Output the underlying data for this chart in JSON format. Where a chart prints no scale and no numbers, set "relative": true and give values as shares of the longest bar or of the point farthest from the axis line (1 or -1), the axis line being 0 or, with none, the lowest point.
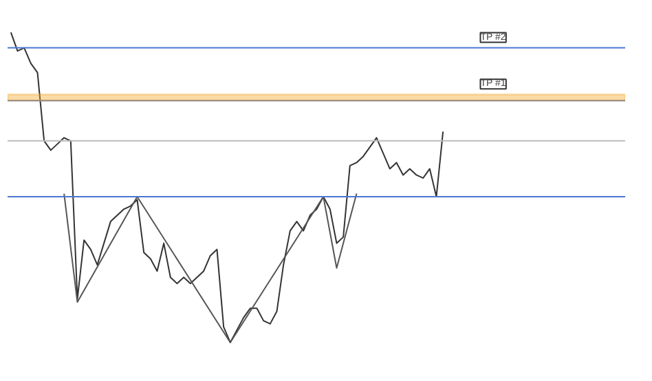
{
  "chart_data": {
    "type": "line",
    "relative": true,
    "categories": [
      null,
      null,
      null,
      null,
      null,
      null,
      null,
      null,
      null,
      null,
      null,
      null,
      null,
      null,
      null,
      null,
      null,
      null,
      null,
      null,
      null,
      null,
      null,
      null,
      null,
      null,
      null,
      null,
      null,
      null,
      null,
      null,
      null,
      null,
      null,
      null,
      null,
      null,
      null,
      null,
      null,
      null,
      null,
      null,
      null,
      null,
      null,
      null,
      null,
      null,
      null,
      null,
      null,
      null,
      null,
      null,
      null,
      null,
      null,
      null,
      null,
      null,
      null,
      null,
      null,
      null
    ],
    "series": [
      {
        "color": "#333333",
        "values": [
          1.0,
          0.94,
          0.95,
          0.9,
          0.87,
          0.65,
          0.62,
          0.64,
          0.66,
          0.65,
          0.14,
          0.33,
          0.3,
          0.25,
          0.32,
          0.39,
          0.41,
          0.43,
          0.44,
          0.46,
          0.29,
          0.27,
          0.23,
          0.32,
          0.21,
          0.19,
          0.21,
          0.19,
          0.21,
          0.23,
          0.28,
          0.3,
          0.05,
          0,
          0.04,
          0.08,
          0.11,
          0.11,
          0.07,
          0.06,
          0.1,
          0.25,
          0.36,
          0.39,
          0.36,
          0.41,
          0.43,
          0.47,
          0.43,
          0.32,
          0.34,
          0.57,
          0.58,
          0.6,
          0.63,
          0.66,
          0.61,
          0.56,
          0.58,
          0.54,
          0.56,
          0.54,
          0.53,
          0.56,
          0.47,
          0.68
        ]
      },
      {
        "color": "#555555",
        "values": [
          null,
          null,
          null,
          null,
          null,
          null,
          null,
          null,
          0.48,
          null,
          0.13,
          null,
          null,
          null,
          null,
          null,
          null,
          null,
          null,
          0.47,
          null,
          null,
          null,
          null,
          null,
          null,
          null,
          null,
          null,
          null,
          null,
          null,
          null,
          0,
          null,
          null,
          null,
          null,
          null,
          null,
          null,
          null,
          null,
          null,
          null,
          null,
          null,
          0.47,
          null,
          0.24,
          null,
          null,
          0.48,
          null,
          null,
          null,
          null,
          null,
          null,
          null,
          null,
          null,
          null,
          null,
          null,
          null
        ]
      }
    ],
    "ref_lines": [
      {
        "axis": "y",
        "value": 0.95,
        "label": "TP #2",
        "color": "#4a78d0"
      },
      {
        "axis": "y",
        "value": 0.78,
        "color": "#4a78d0"
      },
      {
        "axis": "y",
        "value": 0.65,
        "color": "#bbbbbb"
      },
      {
        "axis": "y",
        "value": 0.47,
        "color": "#4a78d0"
      }
    ],
    "bands": [
      {
        "axis": "y",
        "from": 0.78,
        "to": 0.8,
        "label": "TP #1",
        "color": "#f5a623"
      }
    ]
  }
}
